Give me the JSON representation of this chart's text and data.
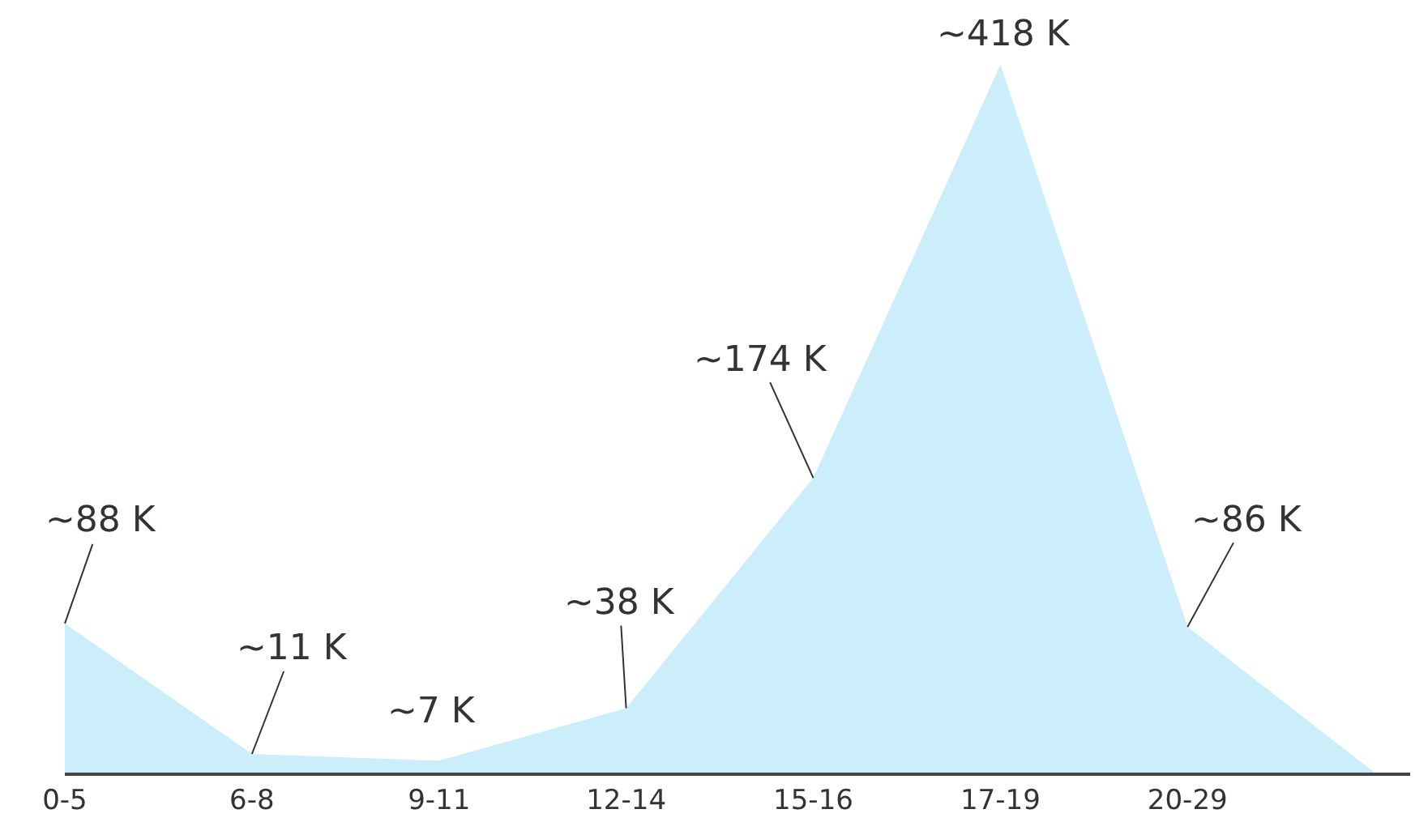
{
  "chart_data": {
    "type": "area",
    "categories": [
      "0-5",
      "6-8",
      "9-11",
      "12-14",
      "15-16",
      "17-19",
      "20-29",
      null
    ],
    "series": [
      {
        "color": "#cceefb",
        "values": [
          88,
          11,
          7,
          38,
          174,
          418,
          86,
          0
        ],
        "value_labels": [
          "~88 K",
          "~11 K",
          "~7 K",
          "~38 K",
          "~174 K",
          "~418 K",
          "~86 K",
          null
        ]
      }
    ]
  }
}
